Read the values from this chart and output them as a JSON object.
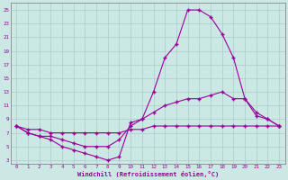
{
  "xlabel": "Windchill (Refroidissement éolien,°C)",
  "bg_color": "#cce8e4",
  "grid_color": "#aacccc",
  "line_color": "#990099",
  "xlim": [
    -0.5,
    23.5
  ],
  "ylim": [
    2.5,
    26
  ],
  "xticks": [
    0,
    1,
    2,
    3,
    4,
    5,
    6,
    7,
    8,
    9,
    10,
    11,
    12,
    13,
    14,
    15,
    16,
    17,
    18,
    19,
    20,
    21,
    22,
    23
  ],
  "yticks": [
    3,
    5,
    7,
    9,
    11,
    13,
    15,
    17,
    19,
    21,
    23,
    25
  ],
  "line1_x": [
    0,
    1,
    2,
    3,
    4,
    5,
    6,
    7,
    8,
    9,
    10,
    11,
    12,
    13,
    14,
    15,
    16,
    17,
    18,
    19,
    20,
    21,
    22,
    23
  ],
  "line1_y": [
    8,
    7,
    6.5,
    6,
    5,
    4.5,
    4,
    3.5,
    3,
    3.5,
    8.5,
    9,
    13,
    18,
    20,
    25,
    25,
    24,
    21.5,
    18,
    12,
    10,
    9,
    8
  ],
  "line2_x": [
    0,
    1,
    2,
    3,
    4,
    5,
    6,
    7,
    8,
    9,
    10,
    11,
    12,
    13,
    14,
    15,
    16,
    17,
    18,
    19,
    20,
    21,
    22,
    23
  ],
  "line2_y": [
    8,
    7.5,
    7.5,
    7,
    7,
    7,
    7,
    7,
    7,
    7,
    7.5,
    7.5,
    8,
    8,
    8,
    8,
    8,
    8,
    8,
    8,
    8,
    8,
    8,
    8
  ],
  "line3_x": [
    0,
    1,
    2,
    3,
    4,
    5,
    6,
    7,
    8,
    9,
    10,
    11,
    12,
    13,
    14,
    15,
    16,
    17,
    18,
    19,
    20,
    21,
    22,
    23
  ],
  "line3_y": [
    8,
    7,
    6.5,
    6.5,
    6,
    5.5,
    5.0,
    5.0,
    5.0,
    6,
    8,
    9,
    10,
    11,
    11.5,
    12,
    12,
    12.5,
    13,
    12,
    12,
    9.5,
    9,
    8
  ],
  "marker": "+",
  "markersize": 2.5,
  "linewidth": 0.8,
  "xlabel_fontsize": 5.0,
  "tick_fontsize": 4.2
}
